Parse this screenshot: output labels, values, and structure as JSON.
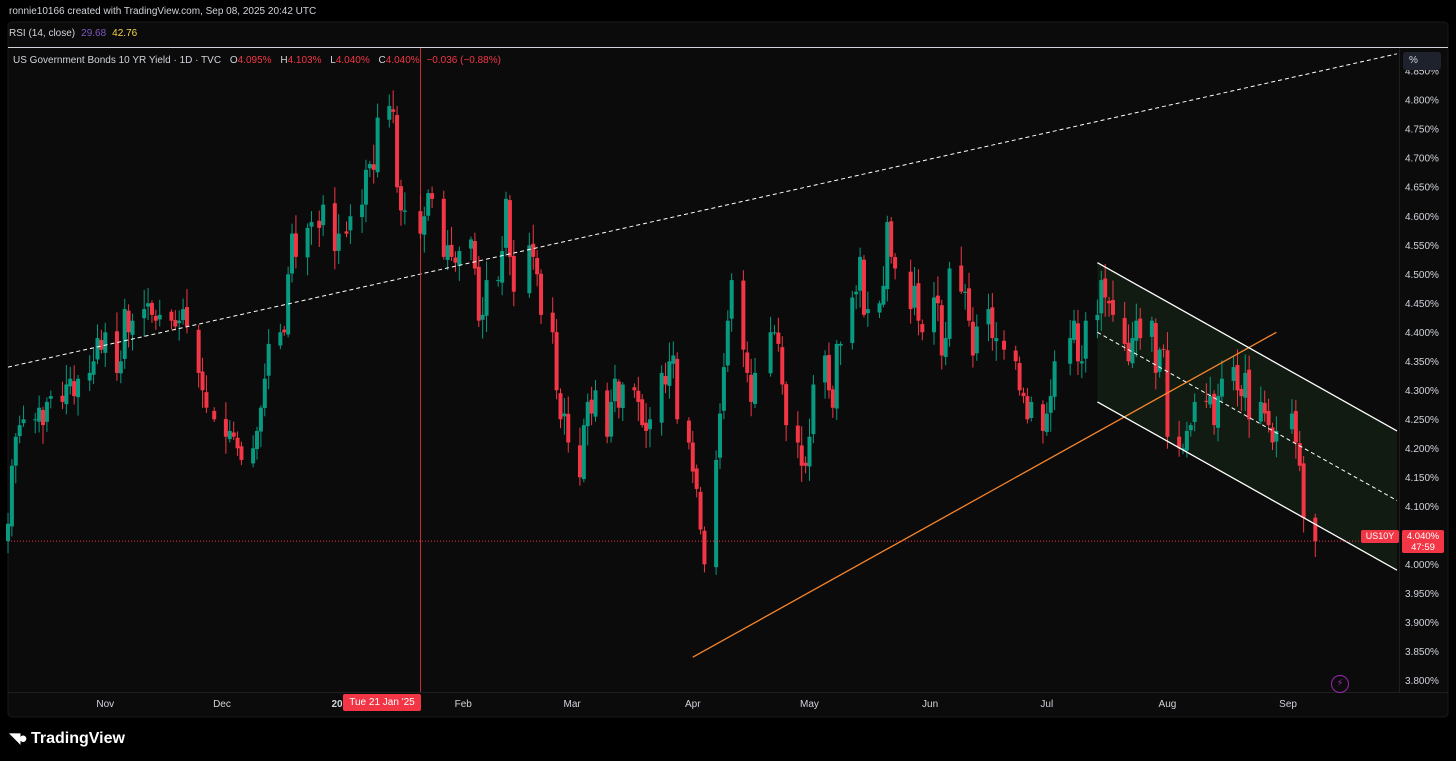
{
  "header": {
    "created_text": "ronnie10166 created with TradingView.com, Sep 08, 2025 20:42 UTC"
  },
  "rsi": {
    "label": "RSI (14, close)",
    "value1": "29.68",
    "value2": "42.76"
  },
  "legend": {
    "title": "US Government Bonds 10 YR Yield · 1D · TVC",
    "o_label": "O",
    "o_value": "4.095%",
    "h_label": "H",
    "h_value": "4.103%",
    "l_label": "L",
    "l_value": "4.040%",
    "c_label": "C",
    "c_value": "4.040%",
    "change": "−0.036 (−0.88%)"
  },
  "price_scale_unit": "%",
  "last_price": {
    "symbol": "US10Y",
    "price": "4.040%",
    "countdown": "47:59"
  },
  "crosshair_date": "Tue 21 Jan '25",
  "brand": "TradingView",
  "colors": {
    "up": "#089981",
    "down": "#f23645",
    "background": "#0b0b0b",
    "channel": "#ffffff",
    "support": "#f7852b"
  },
  "chart_data": {
    "type": "candlestick",
    "y_axis": {
      "range": [
        3.78,
        4.89
      ],
      "ticks": [
        "3.800%",
        "3.850%",
        "3.900%",
        "3.950%",
        "4.000%",
        "4.050%",
        "4.100%",
        "4.150%",
        "4.200%",
        "4.250%",
        "4.300%",
        "4.350%",
        "4.400%",
        "4.450%",
        "4.500%",
        "4.550%",
        "4.600%",
        "4.650%",
        "4.700%",
        "4.750%",
        "4.800%",
        "4.850%"
      ]
    },
    "x_axis": {
      "labels": [
        {
          "text": "Nov",
          "date": "2024-11-01",
          "bold": false
        },
        {
          "text": "Dec",
          "date": "2024-12-01",
          "bold": false
        },
        {
          "text": "2025",
          "date": "2025-01-01",
          "bold": true
        },
        {
          "text": "Feb",
          "date": "2025-02-01",
          "bold": false
        },
        {
          "text": "Mar",
          "date": "2025-03-01",
          "bold": false
        },
        {
          "text": "Apr",
          "date": "2025-04-01",
          "bold": false
        },
        {
          "text": "May",
          "date": "2025-05-01",
          "bold": false
        },
        {
          "text": "Jun",
          "date": "2025-06-01",
          "bold": false
        },
        {
          "text": "Jul",
          "date": "2025-07-01",
          "bold": false
        },
        {
          "text": "Aug",
          "date": "2025-08-01",
          "bold": false
        },
        {
          "text": "Sep",
          "date": "2025-09-01",
          "bold": false
        }
      ]
    },
    "crosshair": {
      "date": "2025-01-21"
    },
    "last_close": 4.04,
    "close_series": [
      [
        "2024-10-07",
        4.07
      ],
      [
        "2024-10-08",
        4.17
      ],
      [
        "2024-10-09",
        4.22
      ],
      [
        "2024-10-10",
        4.24
      ],
      [
        "2024-10-11",
        4.25
      ],
      [
        "2024-10-14",
        4.25
      ],
      [
        "2024-10-15",
        4.27
      ],
      [
        "2024-10-16",
        4.24
      ],
      [
        "2024-10-17",
        4.28
      ],
      [
        "2024-10-18",
        4.29
      ],
      [
        "2024-10-21",
        4.28
      ],
      [
        "2024-10-22",
        4.31
      ],
      [
        "2024-10-23",
        4.32
      ],
      [
        "2024-10-24",
        4.29
      ],
      [
        "2024-10-25",
        4.32
      ],
      [
        "2024-10-28",
        4.33
      ],
      [
        "2024-10-29",
        4.35
      ],
      [
        "2024-10-30",
        4.39
      ],
      [
        "2024-10-31",
        4.37
      ],
      [
        "2024-11-01",
        4.4
      ],
      [
        "2024-11-04",
        4.33
      ],
      [
        "2024-11-05",
        4.35
      ],
      [
        "2024-11-06",
        4.44
      ],
      [
        "2024-11-07",
        4.4
      ],
      [
        "2024-11-08",
        4.42
      ],
      [
        "2024-11-11",
        4.44
      ],
      [
        "2024-11-12",
        4.45
      ],
      [
        "2024-11-13",
        4.43
      ],
      [
        "2024-11-14",
        4.42
      ],
      [
        "2024-11-15",
        4.43
      ],
      [
        "2024-11-18",
        4.42
      ],
      [
        "2024-11-19",
        4.41
      ],
      [
        "2024-11-20",
        4.42
      ],
      [
        "2024-11-21",
        4.44
      ],
      [
        "2024-11-22",
        4.41
      ],
      [
        "2024-11-25",
        4.33
      ],
      [
        "2024-11-26",
        4.3
      ],
      [
        "2024-11-27",
        4.27
      ],
      [
        "2024-11-29",
        4.25
      ],
      [
        "2024-12-02",
        4.22
      ],
      [
        "2024-12-03",
        4.23
      ],
      [
        "2024-12-04",
        4.22
      ],
      [
        "2024-12-05",
        4.2
      ],
      [
        "2024-12-06",
        4.18
      ],
      [
        "2024-12-09",
        4.2
      ],
      [
        "2024-12-10",
        4.23
      ],
      [
        "2024-12-11",
        4.27
      ],
      [
        "2024-12-12",
        4.32
      ],
      [
        "2024-12-13",
        4.38
      ],
      [
        "2024-12-16",
        4.4
      ],
      [
        "2024-12-17",
        4.4
      ],
      [
        "2024-12-18",
        4.5
      ],
      [
        "2024-12-19",
        4.57
      ],
      [
        "2024-12-20",
        4.53
      ],
      [
        "2024-12-23",
        4.58
      ],
      [
        "2024-12-24",
        4.59
      ],
      [
        "2024-12-26",
        4.58
      ],
      [
        "2024-12-27",
        4.62
      ],
      [
        "2024-12-30",
        4.54
      ],
      [
        "2024-12-31",
        4.57
      ],
      [
        "2025-01-02",
        4.57
      ],
      [
        "2025-01-03",
        4.6
      ],
      [
        "2025-01-06",
        4.62
      ],
      [
        "2025-01-07",
        4.68
      ],
      [
        "2025-01-08",
        4.69
      ],
      [
        "2025-01-09",
        4.68
      ],
      [
        "2025-01-10",
        4.77
      ],
      [
        "2025-01-13",
        4.79
      ],
      [
        "2025-01-14",
        4.78
      ],
      [
        "2025-01-15",
        4.65
      ],
      [
        "2025-01-16",
        4.61
      ],
      [
        "2025-01-17",
        4.61
      ],
      [
        "2025-01-21",
        4.57
      ],
      [
        "2025-01-22",
        4.6
      ],
      [
        "2025-01-23",
        4.64
      ],
      [
        "2025-01-24",
        4.63
      ],
      [
        "2025-01-27",
        4.53
      ],
      [
        "2025-01-28",
        4.55
      ],
      [
        "2025-01-29",
        4.53
      ],
      [
        "2025-01-30",
        4.52
      ],
      [
        "2025-01-31",
        4.54
      ],
      [
        "2025-02-03",
        4.56
      ],
      [
        "2025-02-04",
        4.51
      ],
      [
        "2025-02-05",
        4.42
      ],
      [
        "2025-02-06",
        4.43
      ],
      [
        "2025-02-07",
        4.49
      ],
      [
        "2025-02-10",
        4.49
      ],
      [
        "2025-02-11",
        4.54
      ],
      [
        "2025-02-12",
        4.63
      ],
      [
        "2025-02-13",
        4.53
      ],
      [
        "2025-02-14",
        4.47
      ],
      [
        "2025-02-18",
        4.55
      ],
      [
        "2025-02-19",
        4.53
      ],
      [
        "2025-02-20",
        4.5
      ],
      [
        "2025-02-21",
        4.43
      ],
      [
        "2025-02-24",
        4.4
      ],
      [
        "2025-02-25",
        4.3
      ],
      [
        "2025-02-26",
        4.25
      ],
      [
        "2025-02-27",
        4.26
      ],
      [
        "2025-02-28",
        4.21
      ],
      [
        "2025-03-03",
        4.15
      ],
      [
        "2025-03-04",
        4.24
      ],
      [
        "2025-03-05",
        4.28
      ],
      [
        "2025-03-06",
        4.26
      ],
      [
        "2025-03-07",
        4.3
      ],
      [
        "2025-03-10",
        4.22
      ],
      [
        "2025-03-11",
        4.28
      ],
      [
        "2025-03-12",
        4.32
      ],
      [
        "2025-03-13",
        4.27
      ],
      [
        "2025-03-14",
        4.31
      ],
      [
        "2025-03-17",
        4.3
      ],
      [
        "2025-03-18",
        4.28
      ],
      [
        "2025-03-19",
        4.24
      ],
      [
        "2025-03-20",
        4.23
      ],
      [
        "2025-03-21",
        4.25
      ],
      [
        "2025-03-24",
        4.33
      ],
      [
        "2025-03-25",
        4.31
      ],
      [
        "2025-03-26",
        4.35
      ],
      [
        "2025-03-27",
        4.36
      ],
      [
        "2025-03-28",
        4.25
      ],
      [
        "2025-03-31",
        4.21
      ],
      [
        "2025-04-01",
        4.16
      ],
      [
        "2025-04-02",
        4.13
      ],
      [
        "2025-04-03",
        4.06
      ],
      [
        "2025-04-04",
        4.0
      ],
      [
        "2025-04-07",
        4.18
      ],
      [
        "2025-04-08",
        4.26
      ],
      [
        "2025-04-09",
        4.34
      ],
      [
        "2025-04-10",
        4.42
      ],
      [
        "2025-04-11",
        4.49
      ],
      [
        "2025-04-14",
        4.37
      ],
      [
        "2025-04-15",
        4.33
      ],
      [
        "2025-04-16",
        4.28
      ],
      [
        "2025-04-17",
        4.33
      ],
      [
        "2025-04-21",
        4.4
      ],
      [
        "2025-04-22",
        4.4
      ],
      [
        "2025-04-23",
        4.38
      ],
      [
        "2025-04-24",
        4.31
      ],
      [
        "2025-04-25",
        4.24
      ],
      [
        "2025-04-28",
        4.21
      ],
      [
        "2025-04-29",
        4.17
      ],
      [
        "2025-04-30",
        4.17
      ],
      [
        "2025-05-01",
        4.22
      ],
      [
        "2025-05-02",
        4.31
      ],
      [
        "2025-05-05",
        4.36
      ],
      [
        "2025-05-06",
        4.3
      ],
      [
        "2025-05-07",
        4.27
      ],
      [
        "2025-05-08",
        4.38
      ],
      [
        "2025-05-09",
        4.38
      ],
      [
        "2025-05-12",
        4.46
      ],
      [
        "2025-05-13",
        4.47
      ],
      [
        "2025-05-14",
        4.53
      ],
      [
        "2025-05-15",
        4.43
      ],
      [
        "2025-05-16",
        4.44
      ],
      [
        "2025-05-19",
        4.45
      ],
      [
        "2025-05-20",
        4.48
      ],
      [
        "2025-05-21",
        4.59
      ],
      [
        "2025-05-22",
        4.53
      ],
      [
        "2025-05-23",
        4.51
      ],
      [
        "2025-05-27",
        4.44
      ],
      [
        "2025-05-28",
        4.48
      ],
      [
        "2025-05-29",
        4.42
      ],
      [
        "2025-05-30",
        4.4
      ],
      [
        "2025-06-02",
        4.46
      ],
      [
        "2025-06-03",
        4.45
      ],
      [
        "2025-06-04",
        4.36
      ],
      [
        "2025-06-05",
        4.39
      ],
      [
        "2025-06-06",
        4.51
      ],
      [
        "2025-06-09",
        4.47
      ],
      [
        "2025-06-10",
        4.47
      ],
      [
        "2025-06-11",
        4.42
      ],
      [
        "2025-06-12",
        4.36
      ],
      [
        "2025-06-13",
        4.41
      ],
      [
        "2025-06-16",
        4.44
      ],
      [
        "2025-06-17",
        4.39
      ],
      [
        "2025-06-18",
        4.39
      ],
      [
        "2025-06-20",
        4.37
      ],
      [
        "2025-06-23",
        4.35
      ],
      [
        "2025-06-24",
        4.3
      ],
      [
        "2025-06-25",
        4.29
      ],
      [
        "2025-06-26",
        4.25
      ],
      [
        "2025-06-27",
        4.28
      ],
      [
        "2025-06-30",
        4.23
      ],
      [
        "2025-07-01",
        4.26
      ],
      [
        "2025-07-02",
        4.29
      ],
      [
        "2025-07-03",
        4.35
      ],
      [
        "2025-07-07",
        4.39
      ],
      [
        "2025-07-08",
        4.42
      ],
      [
        "2025-07-09",
        4.35
      ],
      [
        "2025-07-10",
        4.35
      ],
      [
        "2025-07-11",
        4.42
      ],
      [
        "2025-07-14",
        4.43
      ],
      [
        "2025-07-15",
        4.49
      ],
      [
        "2025-07-16",
        4.46
      ],
      [
        "2025-07-17",
        4.45
      ],
      [
        "2025-07-18",
        4.43
      ],
      [
        "2025-07-21",
        4.38
      ],
      [
        "2025-07-22",
        4.35
      ],
      [
        "2025-07-23",
        4.39
      ],
      [
        "2025-07-24",
        4.42
      ],
      [
        "2025-07-25",
        4.39
      ],
      [
        "2025-07-28",
        4.42
      ],
      [
        "2025-07-29",
        4.33
      ],
      [
        "2025-07-30",
        4.37
      ],
      [
        "2025-07-31",
        4.37
      ],
      [
        "2025-08-01",
        4.22
      ],
      [
        "2025-08-04",
        4.2
      ],
      [
        "2025-08-05",
        4.2
      ],
      [
        "2025-08-06",
        4.23
      ],
      [
        "2025-08-07",
        4.24
      ],
      [
        "2025-08-08",
        4.28
      ],
      [
        "2025-08-11",
        4.28
      ],
      [
        "2025-08-12",
        4.29
      ],
      [
        "2025-08-13",
        4.24
      ],
      [
        "2025-08-14",
        4.29
      ],
      [
        "2025-08-15",
        4.32
      ],
      [
        "2025-08-18",
        4.34
      ],
      [
        "2025-08-19",
        4.3
      ],
      [
        "2025-08-20",
        4.29
      ],
      [
        "2025-08-21",
        4.33
      ],
      [
        "2025-08-22",
        4.25
      ],
      [
        "2025-08-25",
        4.28
      ],
      [
        "2025-08-26",
        4.26
      ],
      [
        "2025-08-27",
        4.24
      ],
      [
        "2025-08-28",
        4.21
      ],
      [
        "2025-08-29",
        4.23
      ],
      [
        "2025-09-02",
        4.26
      ],
      [
        "2025-09-03",
        4.21
      ],
      [
        "2025-09-04",
        4.17
      ],
      [
        "2025-09-05",
        4.08
      ],
      [
        "2025-09-08",
        4.04
      ]
    ],
    "trendlines": [
      {
        "name": "dashed-resistance",
        "style": "dashed",
        "color": "#ffffff",
        "p1": [
          "2024-10-07",
          4.34
        ],
        "p2": [
          "2025-09-29",
          4.88
        ]
      },
      {
        "name": "support",
        "style": "solid",
        "color": "#f7852b",
        "p1": [
          "2025-04-01",
          3.84
        ],
        "p2": [
          "2025-08-29",
          4.4
        ]
      },
      {
        "name": "channel-upper",
        "style": "solid",
        "color": "#ffffff",
        "p1": [
          "2025-07-14",
          4.52
        ],
        "p2": [
          "2025-09-29",
          4.23
        ]
      },
      {
        "name": "channel-mid",
        "style": "dashed",
        "color": "#ffffff",
        "p1": [
          "2025-07-14",
          4.4
        ],
        "p2": [
          "2025-09-29",
          4.11
        ]
      },
      {
        "name": "channel-lower",
        "style": "solid",
        "color": "#ffffff",
        "p1": [
          "2025-07-14",
          4.28
        ],
        "p2": [
          "2025-09-29",
          3.99
        ]
      }
    ]
  }
}
